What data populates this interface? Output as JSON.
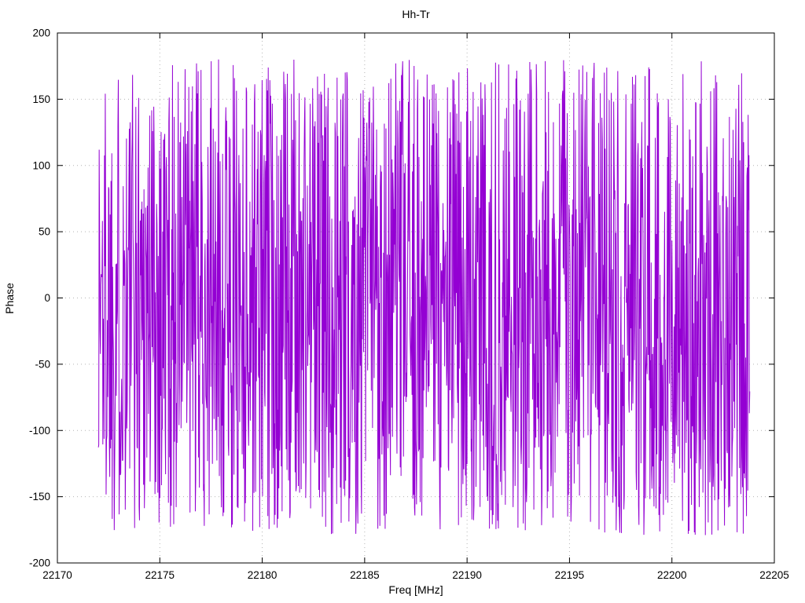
{
  "chart_data": {
    "type": "line",
    "title": "Hh-Tr",
    "xlabel": "Freq [MHz]",
    "ylabel": "Phase",
    "xlim": [
      22170,
      22205
    ],
    "ylim": [
      -200,
      200
    ],
    "x_ticks": [
      22170,
      22175,
      22180,
      22185,
      22190,
      22195,
      22200,
      22205
    ],
    "x_tick_labels": [
      "22170",
      "22175",
      "22180",
      "22185",
      "22190",
      "22195",
      "22200",
      "22205"
    ],
    "y_ticks": [
      -200,
      -150,
      -100,
      -50,
      0,
      50,
      100,
      150,
      200
    ],
    "y_tick_labels": [
      "-200",
      "-150",
      "-100",
      "-50",
      "0",
      "50",
      "100",
      "150",
      "200"
    ],
    "grid": true,
    "grid_style": "dotted",
    "legend_position": "none",
    "series": [
      {
        "name": "Hh-Tr",
        "color": "#9400d3",
        "description": "Wrapped phase noise, uniformly distributed between -180 and 180 degrees across the measured band",
        "x_start": 22172.0,
        "x_end": 22203.8,
        "n_points": 1600,
        "y_min": -179,
        "y_max": 180,
        "distribution": "uniform",
        "seed": 1337
      }
    ],
    "colors": {
      "trace": "#9400d3",
      "grid": "#b4b4b4",
      "border": "#000000",
      "text": "#000000",
      "background": "#ffffff"
    }
  }
}
